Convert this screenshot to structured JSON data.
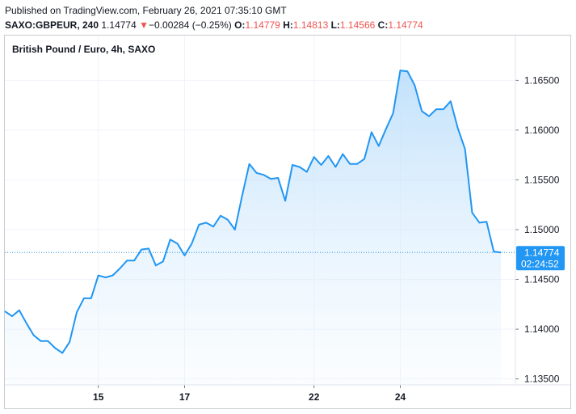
{
  "header": {
    "published": "Published on TradingView.com, February 26, 2021 07:35:10 GMT",
    "symbol": "SAXO:GBPEUR, 240",
    "last": "1.14774",
    "change_arrow": "▼",
    "change": "−0.00284 (−0.25%)",
    "o_label": "O:",
    "o_value": "1.14779",
    "h_label": "H:",
    "h_value": "1.14813",
    "l_label": "L:",
    "l_value": "1.14566",
    "c_label": "C:",
    "c_value": "1.14774"
  },
  "colors": {
    "line": "#2196f3",
    "fill_top": "#bbdefb",
    "grid": "#f0f3fa",
    "price_label_bg": "#2196f3",
    "down": "#ef5350"
  },
  "chart_data": {
    "type": "area",
    "title": "British Pound / Euro, 4h, SAXO",
    "xlabel": "",
    "ylabel": "",
    "x_tick_labels": [
      {
        "index": 13,
        "label": "15"
      },
      {
        "index": 25,
        "label": "17"
      },
      {
        "index": 43,
        "label": "22"
      },
      {
        "index": 55,
        "label": "24"
      }
    ],
    "y_ticks": [
      1.135,
      1.14,
      1.145,
      1.15,
      1.155,
      1.16,
      1.165
    ],
    "y_tick_labels": [
      "1.13500",
      "1.14000",
      "1.14500",
      "1.15000",
      "1.15500",
      "1.16000",
      "1.16500"
    ],
    "ylim": [
      1.1344,
      1.1695
    ],
    "grid": true,
    "last_price_label": "1.14774",
    "countdown_label": "02:24:52",
    "values": [
      1.1418,
      1.1413,
      1.1419,
      1.1406,
      1.1394,
      1.1388,
      1.1388,
      1.1381,
      1.1376,
      1.1387,
      1.1417,
      1.1431,
      1.1431,
      1.1454,
      1.1452,
      1.1454,
      1.1461,
      1.1469,
      1.1469,
      1.148,
      1.1481,
      1.1464,
      1.1468,
      1.149,
      1.1486,
      1.1474,
      1.1486,
      1.1505,
      1.1507,
      1.1503,
      1.1514,
      1.151,
      1.15,
      1.1534,
      1.1566,
      1.1557,
      1.1555,
      1.1551,
      1.1552,
      1.1529,
      1.1565,
      1.1563,
      1.1558,
      1.1573,
      1.1565,
      1.1574,
      1.1563,
      1.1576,
      1.1566,
      1.1566,
      1.1571,
      1.1598,
      1.1584,
      1.1601,
      1.1617,
      1.166,
      1.1659,
      1.1645,
      1.1619,
      1.1614,
      1.1621,
      1.1621,
      1.1629,
      1.1602,
      1.1581,
      1.1517,
      1.1507,
      1.1508,
      1.1478,
      1.1477
    ]
  }
}
